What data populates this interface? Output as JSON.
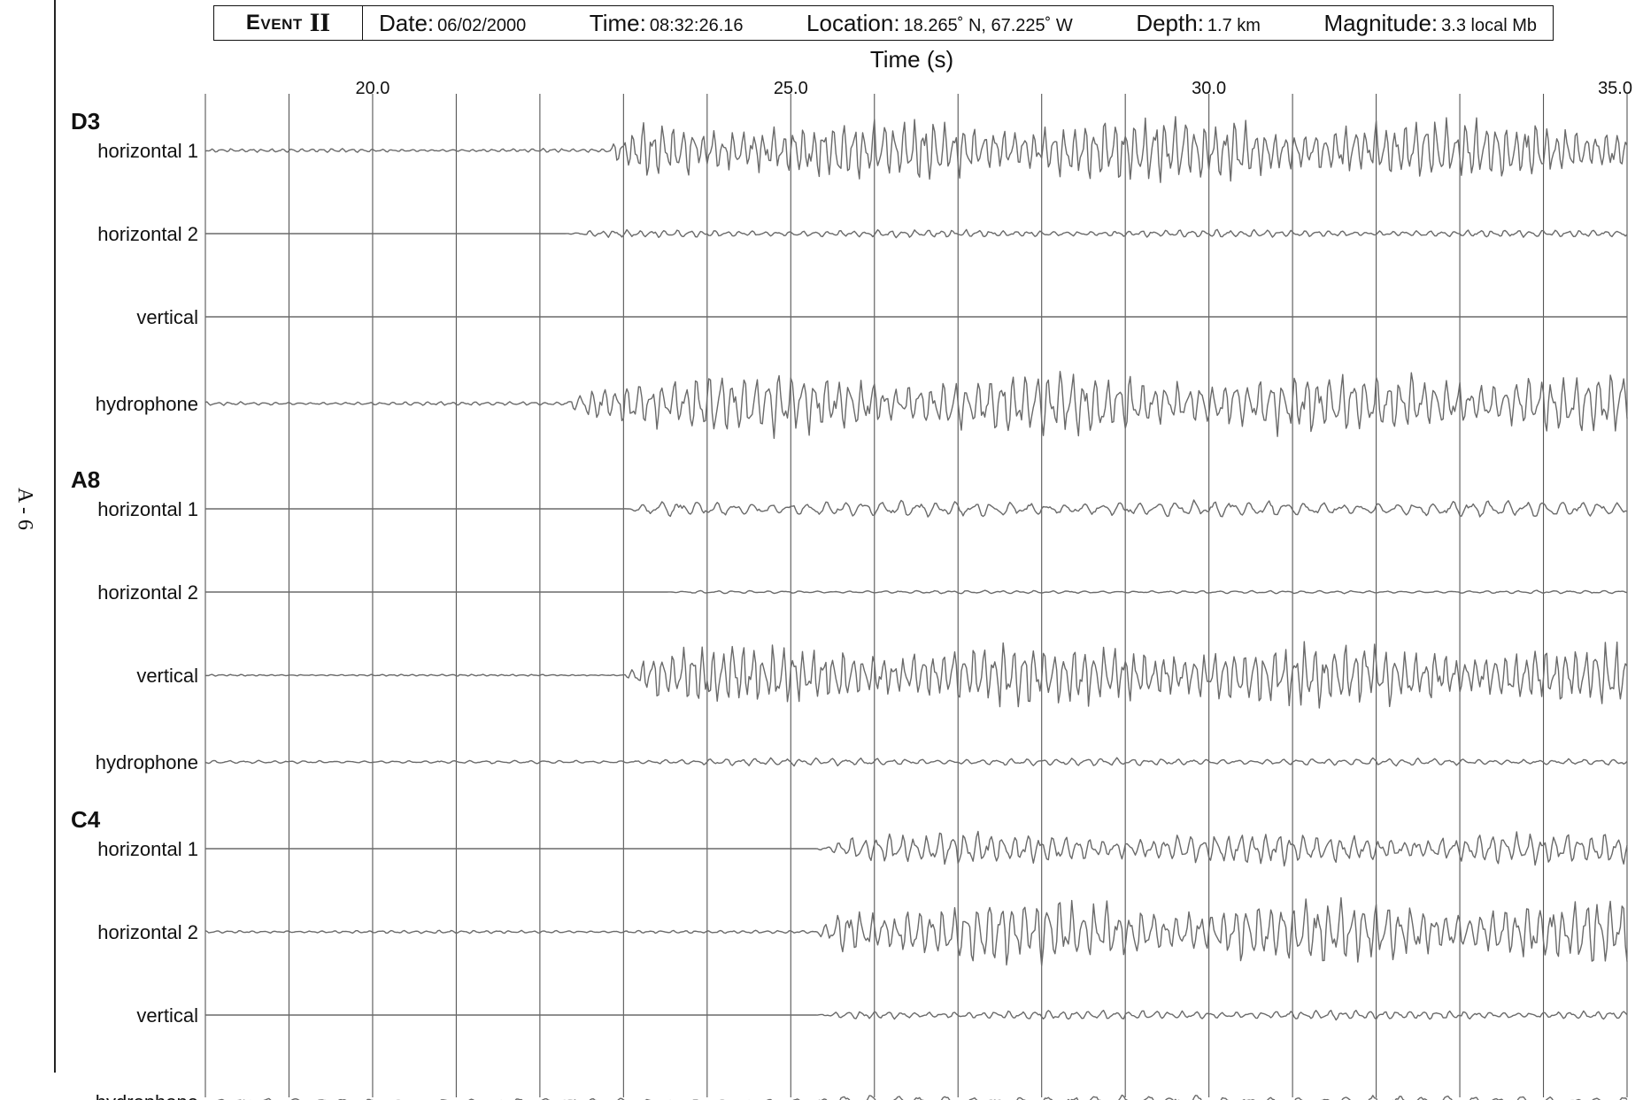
{
  "page": {
    "number": "A - 6"
  },
  "header": {
    "event_word": "Event",
    "event_number": "II",
    "date_label": "Date:",
    "date_value": "06/02/2000",
    "time_label": "Time:",
    "time_value": "08:32:26.16",
    "location_label": "Location:",
    "location_value": "18.265˚ N, 67.225˚ W",
    "depth_label": "Depth:",
    "depth_value": "1.7 km",
    "magnitude_label": "Magnitude:",
    "magnitude_value": "3.3 local Mb"
  },
  "chart_data": {
    "type": "line",
    "xlabel": "Time (s)",
    "xlim": [
      18.0,
      35.0
    ],
    "x_ticks": [
      20.0,
      25.0,
      30.0,
      35.0
    ],
    "x_tick_labels": [
      "20.0",
      "25.0",
      "30.0",
      "35.0"
    ],
    "gridlines_x": [
      18.0,
      19.0,
      20.0,
      21.0,
      22.0,
      23.0,
      24.0,
      25.0,
      26.0,
      27.0,
      28.0,
      29.0,
      30.0,
      31.0,
      32.0,
      33.0,
      34.0,
      35.0
    ],
    "grid": true,
    "line_color": "#6a6a6a",
    "stations": [
      {
        "name": "D3",
        "channels": [
          {
            "name": "horizontal 1",
            "onset_s": 22.8,
            "pre_amplitude": 0.06,
            "post_amplitude": 1.0,
            "dominant_period_s": 0.12
          },
          {
            "name": "horizontal 2",
            "onset_s": 22.3,
            "pre_amplitude": 0.0,
            "post_amplitude": 0.12,
            "dominant_period_s": 0.15
          },
          {
            "name": "vertical",
            "onset_s": 35.0,
            "pre_amplitude": 0.0,
            "post_amplitude": 0.0,
            "dominant_period_s": 0.15
          },
          {
            "name": "hydrophone",
            "onset_s": 22.3,
            "pre_amplitude": 0.06,
            "post_amplitude": 1.0,
            "dominant_period_s": 0.14
          }
        ]
      },
      {
        "name": "A8",
        "channels": [
          {
            "name": "horizontal 1",
            "onset_s": 23.0,
            "pre_amplitude": 0.0,
            "post_amplitude": 0.25,
            "dominant_period_s": 0.22
          },
          {
            "name": "horizontal 2",
            "onset_s": 23.5,
            "pre_amplitude": 0.0,
            "post_amplitude": 0.05,
            "dominant_period_s": 0.2
          },
          {
            "name": "vertical",
            "onset_s": 23.0,
            "pre_amplitude": 0.03,
            "post_amplitude": 1.0,
            "dominant_period_s": 0.12
          },
          {
            "name": "hydrophone",
            "onset_s": 23.0,
            "pre_amplitude": 0.05,
            "post_amplitude": 0.12,
            "dominant_period_s": 0.18
          }
        ]
      },
      {
        "name": "C4",
        "channels": [
          {
            "name": "horizontal 1",
            "onset_s": 25.3,
            "pre_amplitude": 0.0,
            "post_amplitude": 0.5,
            "dominant_period_s": 0.15
          },
          {
            "name": "horizontal 2",
            "onset_s": 25.3,
            "pre_amplitude": 0.05,
            "post_amplitude": 1.0,
            "dominant_period_s": 0.14
          },
          {
            "name": "vertical",
            "onset_s": 25.3,
            "pre_amplitude": 0.0,
            "post_amplitude": 0.15,
            "dominant_period_s": 0.16
          },
          {
            "name": "hydrophone",
            "onset_s": 25.3,
            "pre_amplitude": 0.1,
            "post_amplitude": 0.2,
            "dominant_period_s": 0.3
          }
        ]
      }
    ]
  }
}
